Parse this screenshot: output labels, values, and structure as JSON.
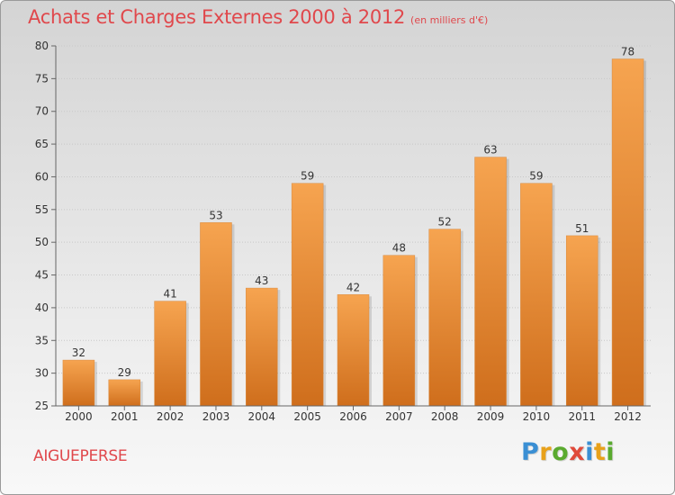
{
  "header": {
    "title": "Achats et Charges Externes 2000 à 2012",
    "subtitle": "(en milliers d'€)"
  },
  "footer": {
    "place": "AIGUEPERSE",
    "brand": "Proxiti",
    "brand_letters": [
      "P",
      "r",
      "o",
      "x",
      "i",
      "t",
      "i"
    ],
    "brand_colors": [
      "#3a8fd4",
      "#e8a11a",
      "#5aaa2f",
      "#e04a3a",
      "#3a8fd4",
      "#e8a11a",
      "#5aaa2f"
    ]
  },
  "colors": {
    "bar_top": "#f6a450",
    "bar_bottom": "#cf6e1c",
    "title": "#e0484c",
    "grid": "#c8c8c8"
  },
  "chart_data": {
    "type": "bar",
    "title": "Achats et Charges Externes 2000 à 2012",
    "subtitle": "(en milliers d'€)",
    "categories": [
      "2000",
      "2001",
      "2002",
      "2003",
      "2004",
      "2005",
      "2006",
      "2007",
      "2008",
      "2009",
      "2010",
      "2011",
      "2012"
    ],
    "values": [
      32,
      29,
      41,
      53,
      43,
      59,
      42,
      48,
      52,
      63,
      59,
      51,
      78
    ],
    "ylim": [
      25,
      80
    ],
    "yticks": [
      25,
      30,
      35,
      40,
      45,
      50,
      55,
      60,
      65,
      70,
      75,
      80
    ],
    "grid": true,
    "data_labels": true
  }
}
